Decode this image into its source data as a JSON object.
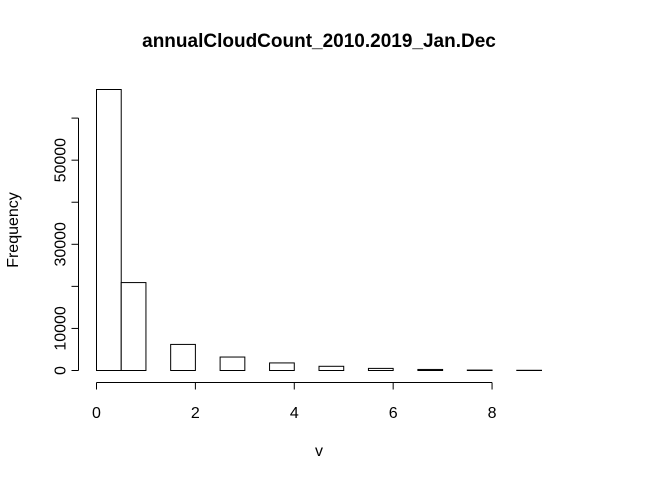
{
  "chart_data": {
    "type": "bar",
    "title": "annualCloudCount_2010.2019_Jan.Dec",
    "xlabel": "v",
    "ylabel": "Frequency",
    "bins": [
      {
        "start": 0.0,
        "end": 0.5,
        "value": 66800
      },
      {
        "start": 0.5,
        "end": 1.0,
        "value": 20900
      },
      {
        "start": 1.0,
        "end": 1.5,
        "value": 0
      },
      {
        "start": 1.5,
        "end": 2.0,
        "value": 6200
      },
      {
        "start": 2.0,
        "end": 2.5,
        "value": 0
      },
      {
        "start": 2.5,
        "end": 3.0,
        "value": 3200
      },
      {
        "start": 3.0,
        "end": 3.5,
        "value": 0
      },
      {
        "start": 3.5,
        "end": 4.0,
        "value": 1800
      },
      {
        "start": 4.0,
        "end": 4.5,
        "value": 0
      },
      {
        "start": 4.5,
        "end": 5.0,
        "value": 1000
      },
      {
        "start": 5.0,
        "end": 5.5,
        "value": 0
      },
      {
        "start": 5.5,
        "end": 6.0,
        "value": 500
      },
      {
        "start": 6.0,
        "end": 6.5,
        "value": 0
      },
      {
        "start": 6.5,
        "end": 7.0,
        "value": 250
      },
      {
        "start": 7.0,
        "end": 7.5,
        "value": 0
      },
      {
        "start": 7.5,
        "end": 8.0,
        "value": 100
      },
      {
        "start": 8.0,
        "end": 8.5,
        "value": 0
      },
      {
        "start": 8.5,
        "end": 9.0,
        "value": 50
      }
    ],
    "xlim": [
      0,
      9
    ],
    "ylim": [
      0,
      66800
    ],
    "x_ticks": [
      0,
      2,
      4,
      6,
      8
    ],
    "x_tick_labels": [
      "0",
      "2",
      "4",
      "6",
      "8"
    ],
    "y_ticks": [
      0,
      10000,
      20000,
      30000,
      40000,
      50000,
      60000
    ],
    "y_tick_labels": [
      "0",
      "10000",
      "",
      "30000",
      "",
      "50000",
      ""
    ],
    "grid": false,
    "bar_fill": "#ffffff",
    "bar_stroke": "#000000"
  }
}
